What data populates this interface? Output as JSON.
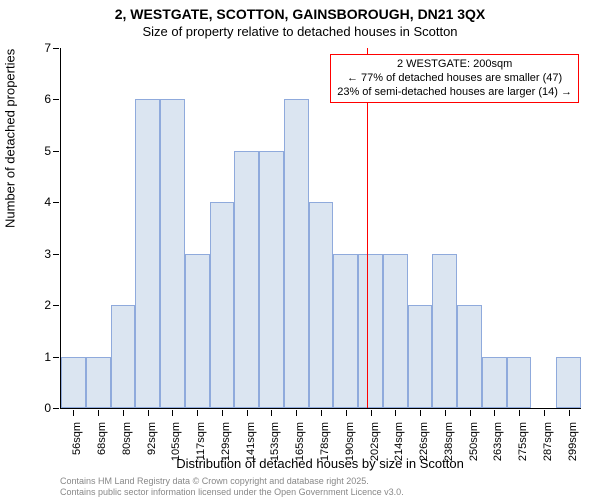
{
  "title": {
    "line1": "2, WESTGATE, SCOTTON, GAINSBOROUGH, DN21 3QX",
    "line2": "Size of property relative to detached houses in Scotton"
  },
  "y_axis": {
    "label": "Number of detached properties",
    "min": 0,
    "max": 7,
    "ticks": [
      0,
      1,
      2,
      3,
      4,
      5,
      6,
      7
    ],
    "label_fontsize": 13,
    "tick_fontsize": 12
  },
  "x_axis": {
    "label": "Distribution of detached houses by size in Scotton",
    "categories": [
      "56sqm",
      "68sqm",
      "80sqm",
      "92sqm",
      "105sqm",
      "117sqm",
      "129sqm",
      "141sqm",
      "153sqm",
      "165sqm",
      "178sqm",
      "190sqm",
      "202sqm",
      "214sqm",
      "226sqm",
      "238sqm",
      "250sqm",
      "263sqm",
      "275sqm",
      "287sqm",
      "299sqm"
    ],
    "label_fontsize": 13,
    "tick_fontsize": 11
  },
  "bars": {
    "values": [
      1,
      1,
      2,
      6,
      6,
      3,
      4,
      5,
      5,
      6,
      4,
      3,
      3,
      3,
      2,
      3,
      2,
      1,
      1,
      0,
      1
    ],
    "fill_color": "#dbe5f1",
    "border_color": "#8faadc",
    "width_ratio": 1.0
  },
  "marker": {
    "x_value_sqm": 200,
    "color": "#ff0000"
  },
  "annotation": {
    "line1": "2 WESTGATE: 200sqm",
    "line2": "← 77% of detached houses are smaller (47)",
    "line3": "23% of semi-detached houses are larger (14) →",
    "border_color": "#ff0000",
    "background_color": "#ffffff",
    "text_color": "#000000",
    "fontsize": 11
  },
  "footer": {
    "line1": "Contains HM Land Registry data © Crown copyright and database right 2025.",
    "line2": "Contains public sector information licensed under the Open Government Licence v3.0.",
    "color": "#888888",
    "fontsize": 9
  },
  "plot": {
    "background_color": "#ffffff",
    "axis_color": "#000000"
  }
}
